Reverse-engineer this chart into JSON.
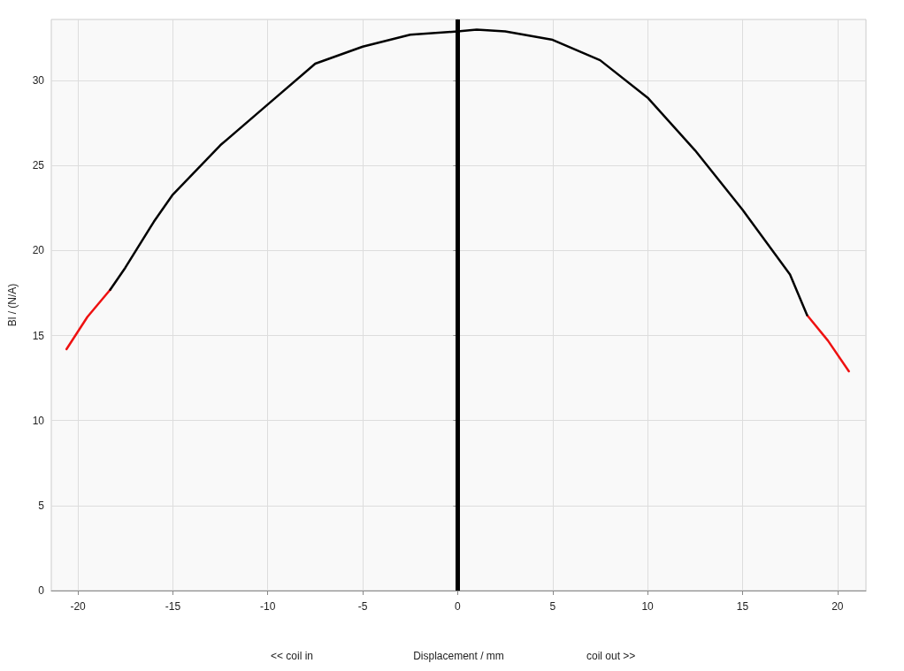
{
  "chart_data": {
    "type": "line",
    "xlabel": "Displacement / mm",
    "ylabel": "Bl / (N/A)",
    "annotations": [
      "<< coil in",
      "coil out >>"
    ],
    "xlim": [
      -21.4,
      21.5
    ],
    "xticks": [
      -20,
      -15,
      -10,
      -5,
      0,
      5,
      10,
      15,
      20
    ],
    "ylim": [
      0,
      33.6
    ],
    "yticks": [
      0,
      5,
      10,
      15,
      20,
      25,
      30
    ],
    "series": [
      {
        "color": "#ee1111",
        "x": [
          -20.6,
          -19.5,
          -18.3,
          -17.5,
          -16,
          -15,
          -12.5,
          -10,
          -7.5,
          -5,
          -2.5,
          0,
          1,
          2.5,
          5,
          7.5,
          10,
          12.5,
          15,
          17.5,
          18.4,
          19.5,
          20.6
        ],
        "values": [
          14.2,
          16.1,
          17.7,
          null,
          null,
          null,
          null,
          null,
          null,
          null,
          null,
          null,
          null,
          null,
          null,
          null,
          null,
          null,
          null,
          null,
          16.2,
          14.7,
          12.9
        ]
      },
      {
        "color": "#000000",
        "x": [
          -18.3,
          -17.5,
          -16,
          -15,
          -12.5,
          -10,
          -7.5,
          -5,
          -2.5,
          0,
          1,
          2.5,
          5,
          7.5,
          10,
          12.5,
          15,
          17.5,
          18.4
        ],
        "values": [
          17.7,
          19.0,
          21.7,
          23.3,
          26.2,
          28.6,
          31.0,
          32.0,
          32.7,
          32.9,
          33.0,
          32.9,
          32.4,
          31.2,
          29.0,
          25.9,
          22.4,
          18.6,
          16.2
        ]
      }
    ],
    "ref_lines": [
      {
        "axis": "x",
        "value": 0,
        "color": "#000000"
      }
    ],
    "grid": true,
    "marker": "none",
    "line_style": "solid"
  }
}
